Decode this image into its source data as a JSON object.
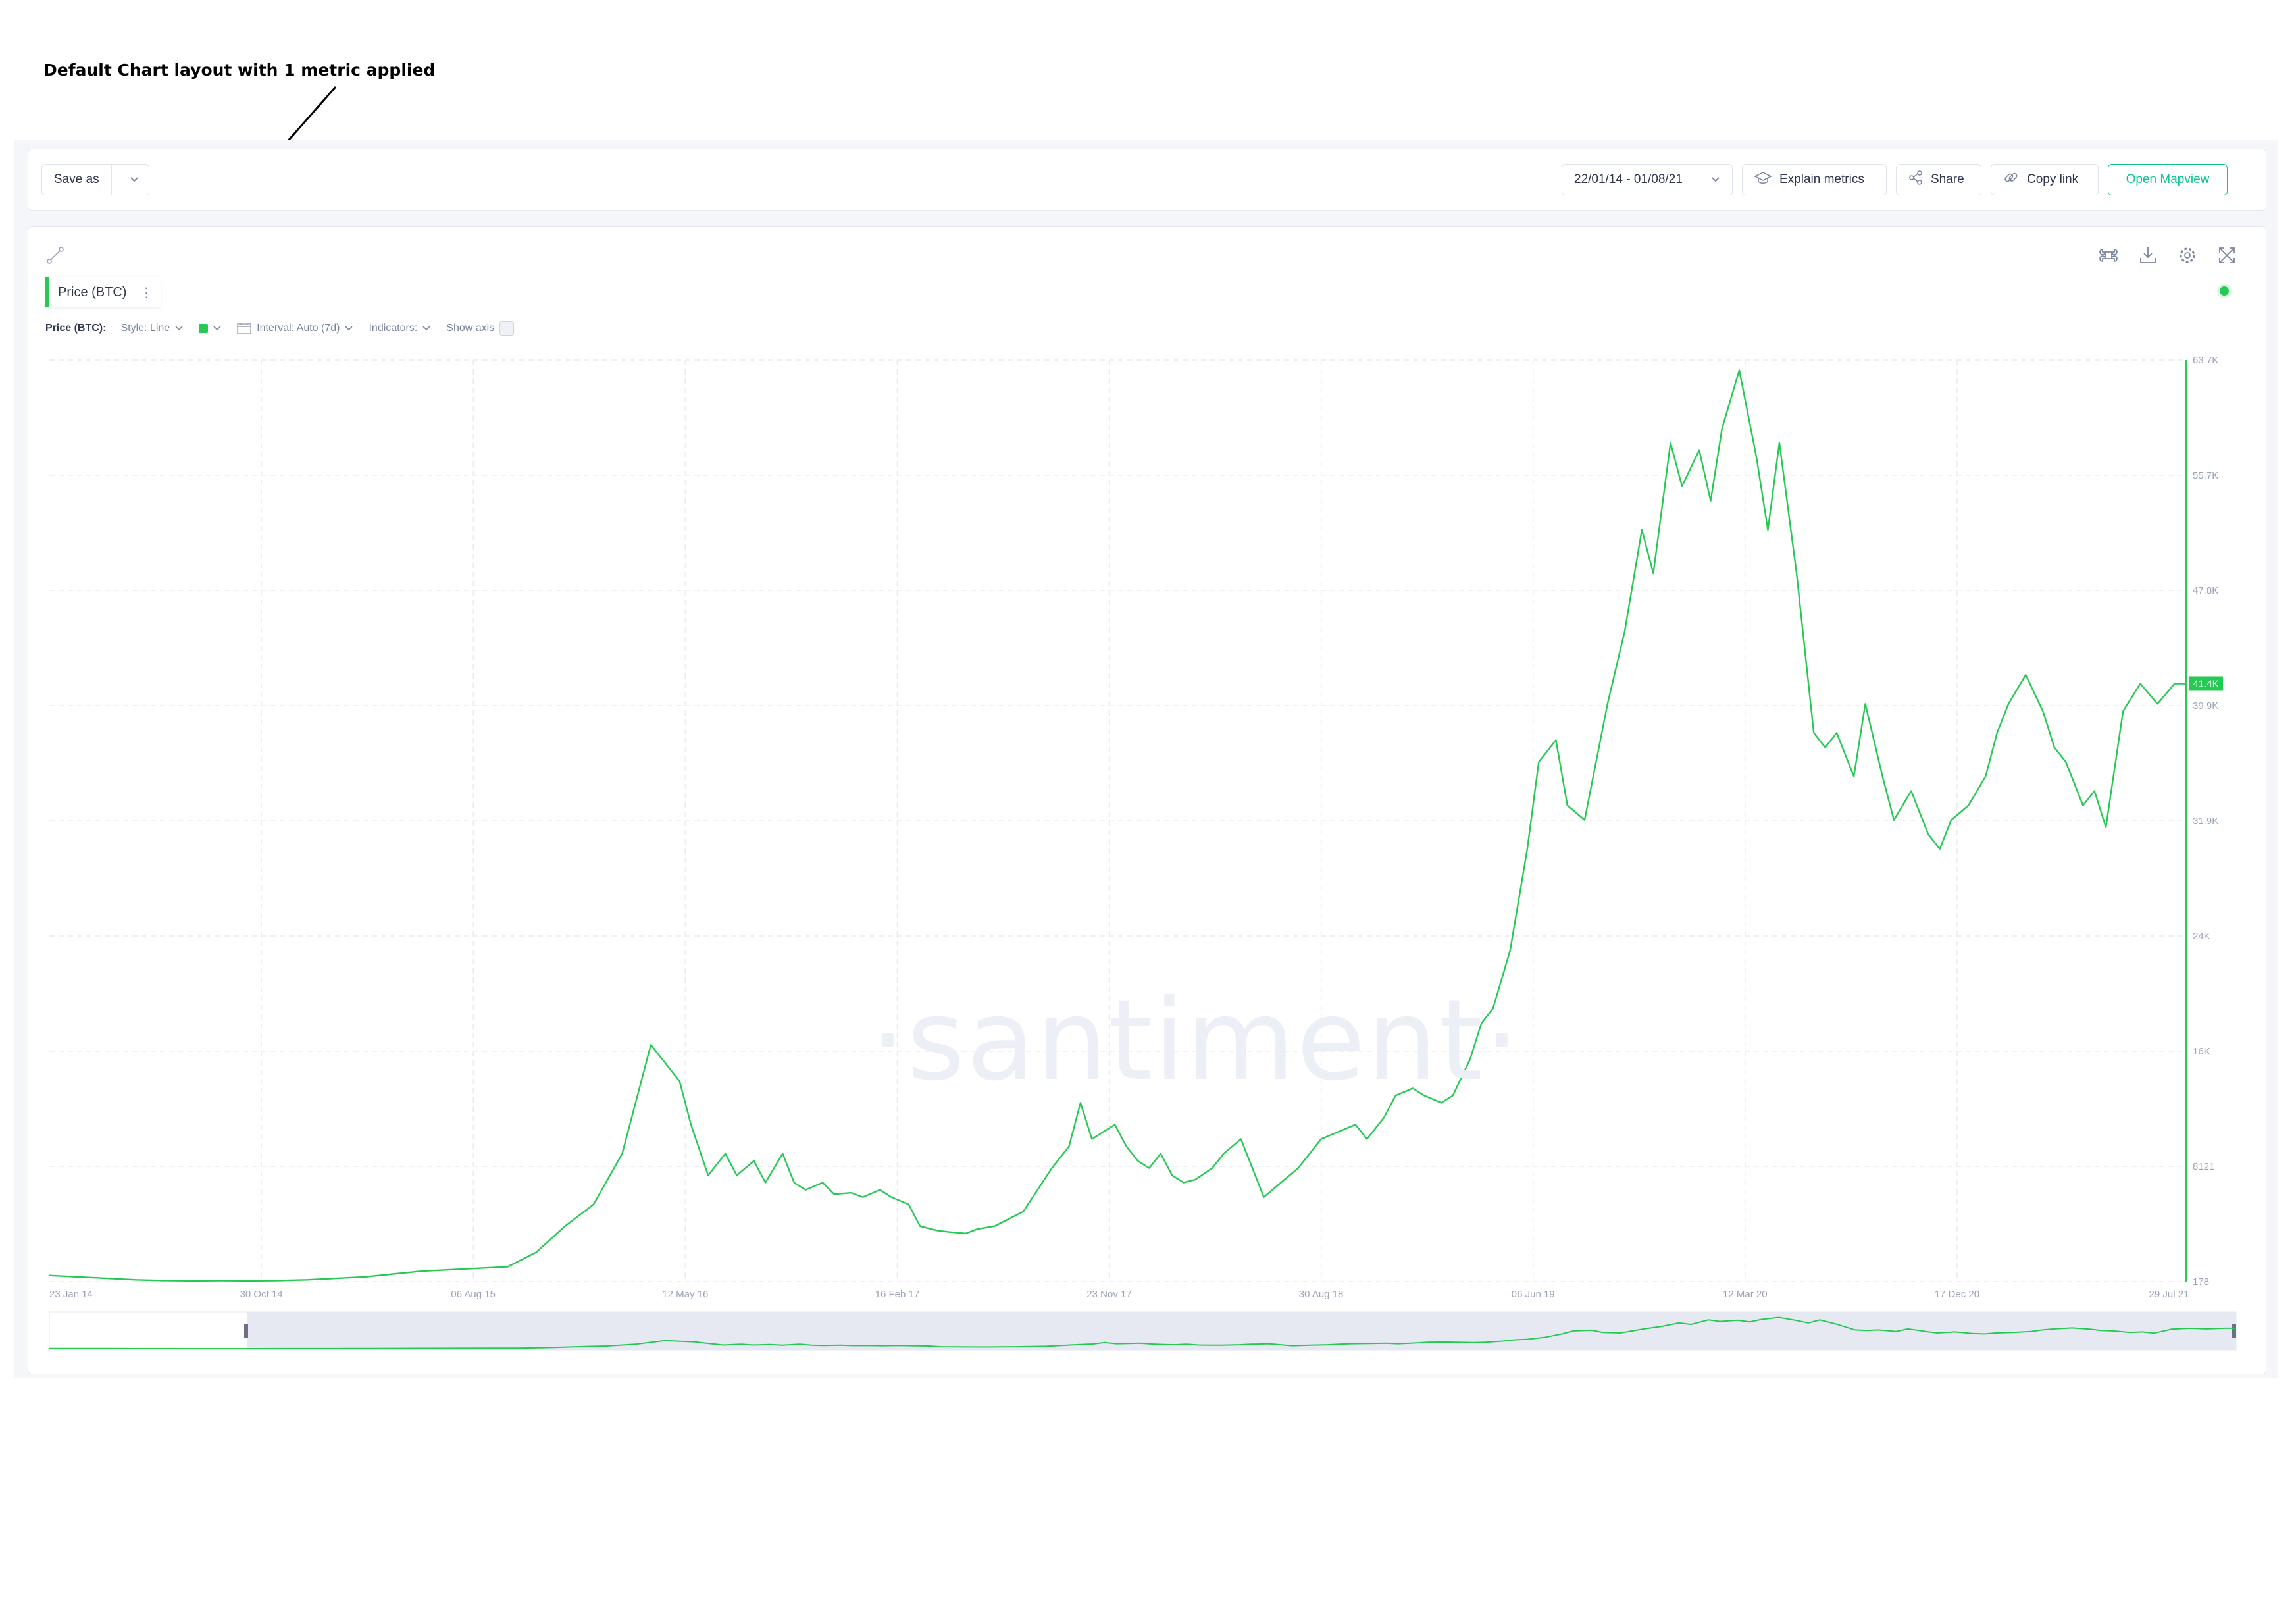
{
  "annotation": {
    "text": "Default Chart layout with 1 metric applied"
  },
  "toolbar": {
    "save_as": "Save as",
    "date_range": "22/01/14 - 01/08/21",
    "explain_metrics": "Explain metrics",
    "share": "Share",
    "copy_link": "Copy link",
    "open_mapview": "Open Mapview"
  },
  "metric_tab": {
    "label": "Price (BTC)",
    "menu": "⋮"
  },
  "settings": {
    "metric_label": "Price (BTC):",
    "style": "Style: Line",
    "interval": "Interval: Auto (7d)",
    "indicators": "Indicators:",
    "show_axis": "Show axis"
  },
  "watermark": "·santiment·",
  "colors": {
    "line": "#26c953",
    "accent": "#14c393",
    "grid": "#e9ecf2"
  },
  "icons": [
    "line-tool-icon",
    "command-icon",
    "download-icon",
    "gear-icon",
    "fullscreen-icon",
    "calendar-icon",
    "explain-icon",
    "share-icon",
    "link-icon"
  ],
  "chart_data": {
    "type": "line",
    "x_ticks": [
      "23 Jan 14",
      "30 Oct 14",
      "06 Aug 15",
      "12 May 16",
      "16 Feb 17",
      "23 Nov 17",
      "30 Aug 18",
      "06 Jun 19",
      "12 Mar 20",
      "17 Dec 20",
      "29 Jul 21"
    ],
    "y_ticks": [
      "178",
      "8121",
      "16K",
      "24K",
      "31.9K",
      "39.9K",
      "47.8K",
      "55.7K",
      "63.7K"
    ],
    "ylim": [
      178,
      63700
    ],
    "last_value_label": "41.4K",
    "series": [
      {
        "name": "Price (BTC)",
        "x": [
          0,
          5,
          10,
          15,
          20,
          25,
          30,
          35,
          40,
          45,
          50,
          55,
          60,
          65,
          70,
          75,
          80,
          85,
          90,
          95,
          100,
          105,
          110,
          112,
          115,
          118,
          120,
          123,
          125,
          128,
          130,
          132,
          135,
          137,
          140,
          142,
          145,
          147,
          150,
          152,
          155,
          157,
          160,
          162,
          165,
          170,
          175,
          178,
          180,
          182,
          184,
          186,
          188,
          190,
          192,
          194,
          196,
          198,
          200,
          203,
          205,
          208,
          210,
          212,
          215,
          218,
          220,
          222,
          225,
          228,
          230,
          233,
          235,
          238,
          240,
          243,
          245,
          248,
          250,
          252,
          255,
          258,
          260,
          263,
          265,
          268,
          270,
          272,
          275,
          278,
          280,
          283,
          285,
          288,
          290,
          292,
          295,
          298,
          300,
          302,
          305,
          308,
          310,
          312,
          315,
          317,
          320,
          322,
          325,
          328,
          330,
          332,
          335,
          338,
          340,
          342,
          345,
          348,
          350,
          352,
          355,
          357,
          359,
          362,
          365,
          368,
          371,
          373
        ],
        "y": [
          600,
          500,
          400,
          300,
          250,
          230,
          240,
          230,
          250,
          300,
          400,
          500,
          700,
          900,
          1000,
          1100,
          1200,
          2200,
          4000,
          5500,
          9000,
          16500,
          14000,
          11000,
          7500,
          9000,
          7500,
          8500,
          7000,
          9000,
          7000,
          6500,
          7000,
          6200,
          6300,
          6000,
          6500,
          6000,
          5500,
          4000,
          3700,
          3600,
          3500,
          3800,
          4000,
          5000,
          8000,
          9500,
          12500,
          10000,
          10500,
          11000,
          9500,
          8500,
          8000,
          9000,
          7500,
          7000,
          7200,
          8000,
          9000,
          10000,
          8000,
          6000,
          7000,
          8000,
          9000,
          10000,
          10500,
          11000,
          10000,
          11500,
          13000,
          13500,
          13000,
          12500,
          13000,
          15500,
          18000,
          19000,
          23000,
          30000,
          36000,
          37500,
          33000,
          32000,
          36000,
          40000,
          45000,
          52000,
          49000,
          58000,
          55000,
          57500,
          54000,
          59000,
          63000,
          57000,
          52000,
          58000,
          49000,
          38000,
          37000,
          38000,
          35000,
          40000,
          35000,
          32000,
          34000,
          31000,
          30000,
          32000,
          33000,
          35000,
          38000,
          40000,
          42000,
          39500,
          37000,
          36000,
          33000,
          34000,
          31500,
          39500,
          41400,
          40000,
          41400,
          41400
        ]
      }
    ]
  }
}
